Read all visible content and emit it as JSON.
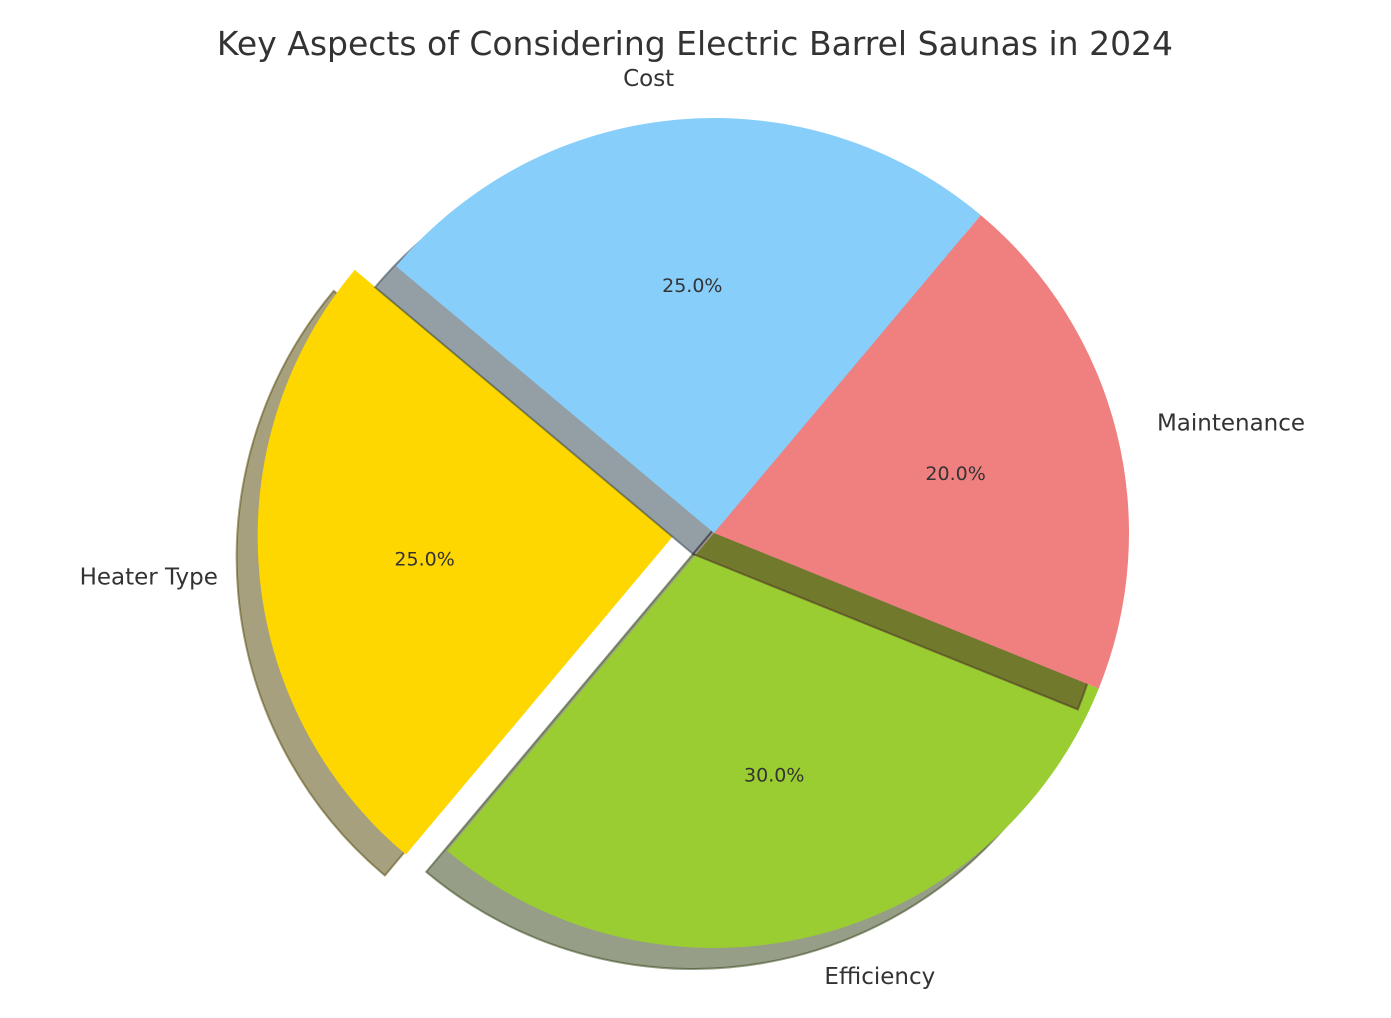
{
  "chart_data": {
    "type": "pie",
    "title": "Key Aspects of Considering Electric Barrel Saunas in 2024",
    "categories": [
      "Heater Type",
      "Efficiency",
      "Maintenance",
      "Cost"
    ],
    "values": [
      25,
      30,
      20,
      25
    ],
    "percent_labels": [
      "25.0%",
      "30.0%",
      "20.0%",
      "25.0%"
    ],
    "colors": [
      "#FFD700",
      "#9ACD32",
      "#F08080",
      "#87CEFA"
    ],
    "explode": [
      0.1,
      0,
      0,
      0
    ],
    "start_angle_deg": 140,
    "shadow": true,
    "legend": "none"
  }
}
